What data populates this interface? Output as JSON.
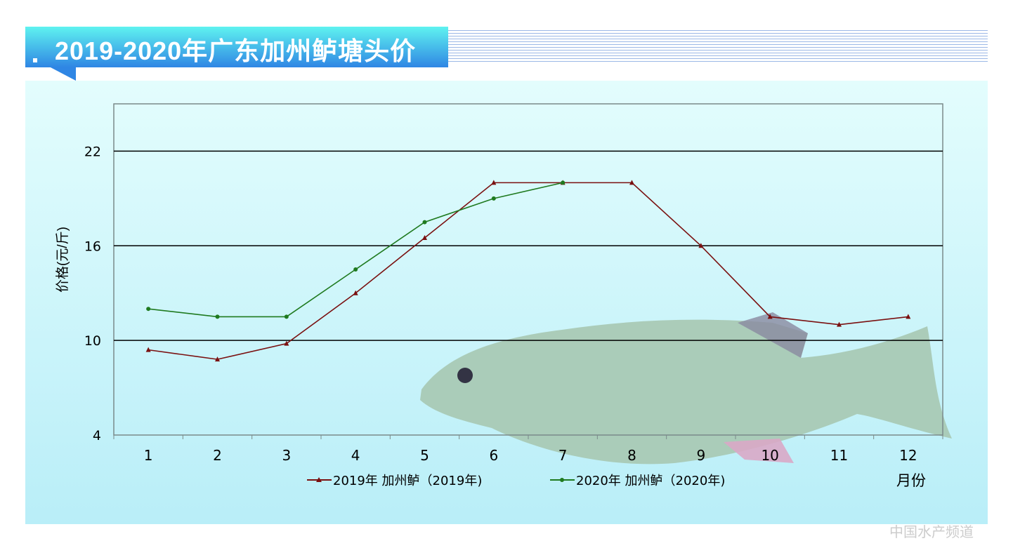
{
  "title": "2019-2020年广东加州鲈塘头价",
  "watermark": "中国水产频道",
  "colors": {
    "series_2019": "#7a1010",
    "series_2020": "#1f7a1f",
    "grid": "#000000",
    "panel": "#c8f4fa"
  },
  "chart_data": {
    "type": "line",
    "title": "",
    "xlabel": "月份",
    "ylabel": "价格(元/斤)",
    "categories": [
      "1",
      "2",
      "3",
      "4",
      "5",
      "6",
      "7",
      "8",
      "9",
      "10",
      "11",
      "12"
    ],
    "ylim": [
      4,
      25
    ],
    "yticks": [
      "4",
      "10",
      "16",
      "22"
    ],
    "grid": true,
    "legend": "bottom",
    "series": [
      {
        "name": "2019年 加州鲈（2019年)",
        "marker": "triangle",
        "values": [
          9.4,
          8.8,
          9.8,
          13.0,
          16.5,
          20.0,
          20.0,
          20.0,
          16.0,
          11.5,
          11.0,
          11.5
        ]
      },
      {
        "name": "2020年 加州鲈（2020年)",
        "marker": "circle",
        "values": [
          12.0,
          11.5,
          11.5,
          14.5,
          17.5,
          19.0,
          20.0,
          null,
          null,
          null,
          null,
          null
        ]
      }
    ]
  }
}
